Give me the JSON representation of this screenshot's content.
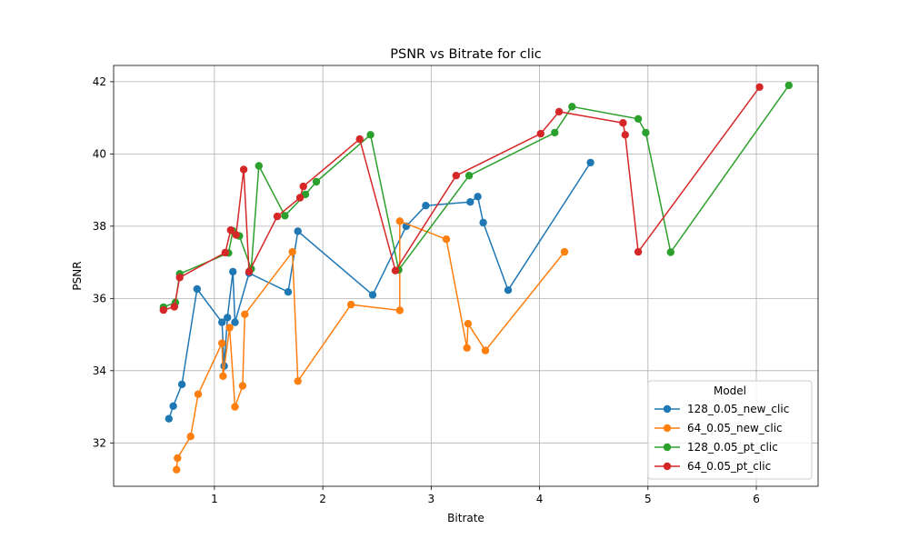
{
  "chart_data": {
    "type": "line",
    "title": "PSNR vs Bitrate for clic",
    "xlabel": "Bitrate",
    "ylabel": "PSNR",
    "xlim": [
      0.07,
      6.57
    ],
    "ylim": [
      30.8,
      42.45
    ],
    "xticks": [
      1,
      2,
      3,
      4,
      5,
      6
    ],
    "yticks": [
      32,
      34,
      36,
      38,
      40,
      42
    ],
    "grid": true,
    "legend": {
      "title": "Model",
      "placement": "lower-right"
    },
    "series": [
      {
        "name": "128_0.05_new_clic",
        "color": "#1f77b4",
        "points": [
          [
            0.58,
            32.67
          ],
          [
            0.62,
            33.02
          ],
          [
            0.7,
            33.62
          ],
          [
            0.84,
            36.26
          ],
          [
            1.07,
            35.34
          ],
          [
            1.09,
            34.13
          ],
          [
            1.12,
            35.47
          ],
          [
            1.17,
            36.74
          ],
          [
            1.19,
            35.34
          ],
          [
            1.32,
            36.7
          ],
          [
            1.68,
            36.18
          ],
          [
            1.77,
            37.86
          ],
          [
            2.46,
            36.1
          ],
          [
            2.77,
            38.0
          ],
          [
            2.95,
            38.57
          ],
          [
            3.36,
            38.67
          ],
          [
            3.43,
            38.82
          ],
          [
            3.48,
            38.1
          ],
          [
            3.71,
            36.23
          ],
          [
            4.47,
            39.76
          ]
        ]
      },
      {
        "name": "64_0.05_new_clic",
        "color": "#ff7f0e",
        "points": [
          [
            0.65,
            31.26
          ],
          [
            0.66,
            31.58
          ],
          [
            0.78,
            32.18
          ],
          [
            0.85,
            33.35
          ],
          [
            1.07,
            34.76
          ],
          [
            1.08,
            33.85
          ],
          [
            1.14,
            35.19
          ],
          [
            1.19,
            33.0
          ],
          [
            1.26,
            33.58
          ],
          [
            1.28,
            35.56
          ],
          [
            1.72,
            37.29
          ],
          [
            1.77,
            33.71
          ],
          [
            2.26,
            35.83
          ],
          [
            2.71,
            35.67
          ],
          [
            2.71,
            38.14
          ],
          [
            3.14,
            37.64
          ],
          [
            3.33,
            34.63
          ],
          [
            3.34,
            35.3
          ],
          [
            3.5,
            34.56
          ],
          [
            4.23,
            37.29
          ]
        ]
      },
      {
        "name": "128_0.05_pt_clic",
        "color": "#2ca02c",
        "points": [
          [
            0.53,
            35.76
          ],
          [
            0.64,
            35.89
          ],
          [
            0.68,
            36.68
          ],
          [
            1.13,
            37.26
          ],
          [
            1.17,
            37.87
          ],
          [
            1.23,
            37.73
          ],
          [
            1.34,
            36.82
          ],
          [
            1.41,
            39.67
          ],
          [
            1.65,
            38.29
          ],
          [
            1.84,
            38.88
          ],
          [
            1.94,
            39.23
          ],
          [
            2.44,
            40.53
          ],
          [
            2.7,
            36.79
          ],
          [
            3.35,
            39.4
          ],
          [
            4.14,
            40.59
          ],
          [
            4.3,
            41.31
          ],
          [
            4.91,
            40.97
          ],
          [
            4.98,
            40.59
          ],
          [
            5.21,
            37.28
          ],
          [
            6.3,
            41.9
          ]
        ]
      },
      {
        "name": "64_0.05_pt_clic",
        "color": "#d62728",
        "points": [
          [
            0.53,
            35.68
          ],
          [
            0.63,
            35.77
          ],
          [
            0.68,
            36.58
          ],
          [
            1.1,
            37.27
          ],
          [
            1.15,
            37.89
          ],
          [
            1.2,
            37.76
          ],
          [
            1.27,
            39.57
          ],
          [
            1.32,
            36.74
          ],
          [
            1.58,
            38.27
          ],
          [
            1.79,
            38.79
          ],
          [
            1.82,
            39.1
          ],
          [
            2.34,
            40.41
          ],
          [
            2.67,
            36.77
          ],
          [
            3.23,
            39.4
          ],
          [
            4.01,
            40.56
          ],
          [
            4.18,
            41.17
          ],
          [
            4.77,
            40.86
          ],
          [
            4.79,
            40.53
          ],
          [
            4.91,
            37.29
          ],
          [
            6.03,
            41.85
          ]
        ]
      }
    ]
  }
}
